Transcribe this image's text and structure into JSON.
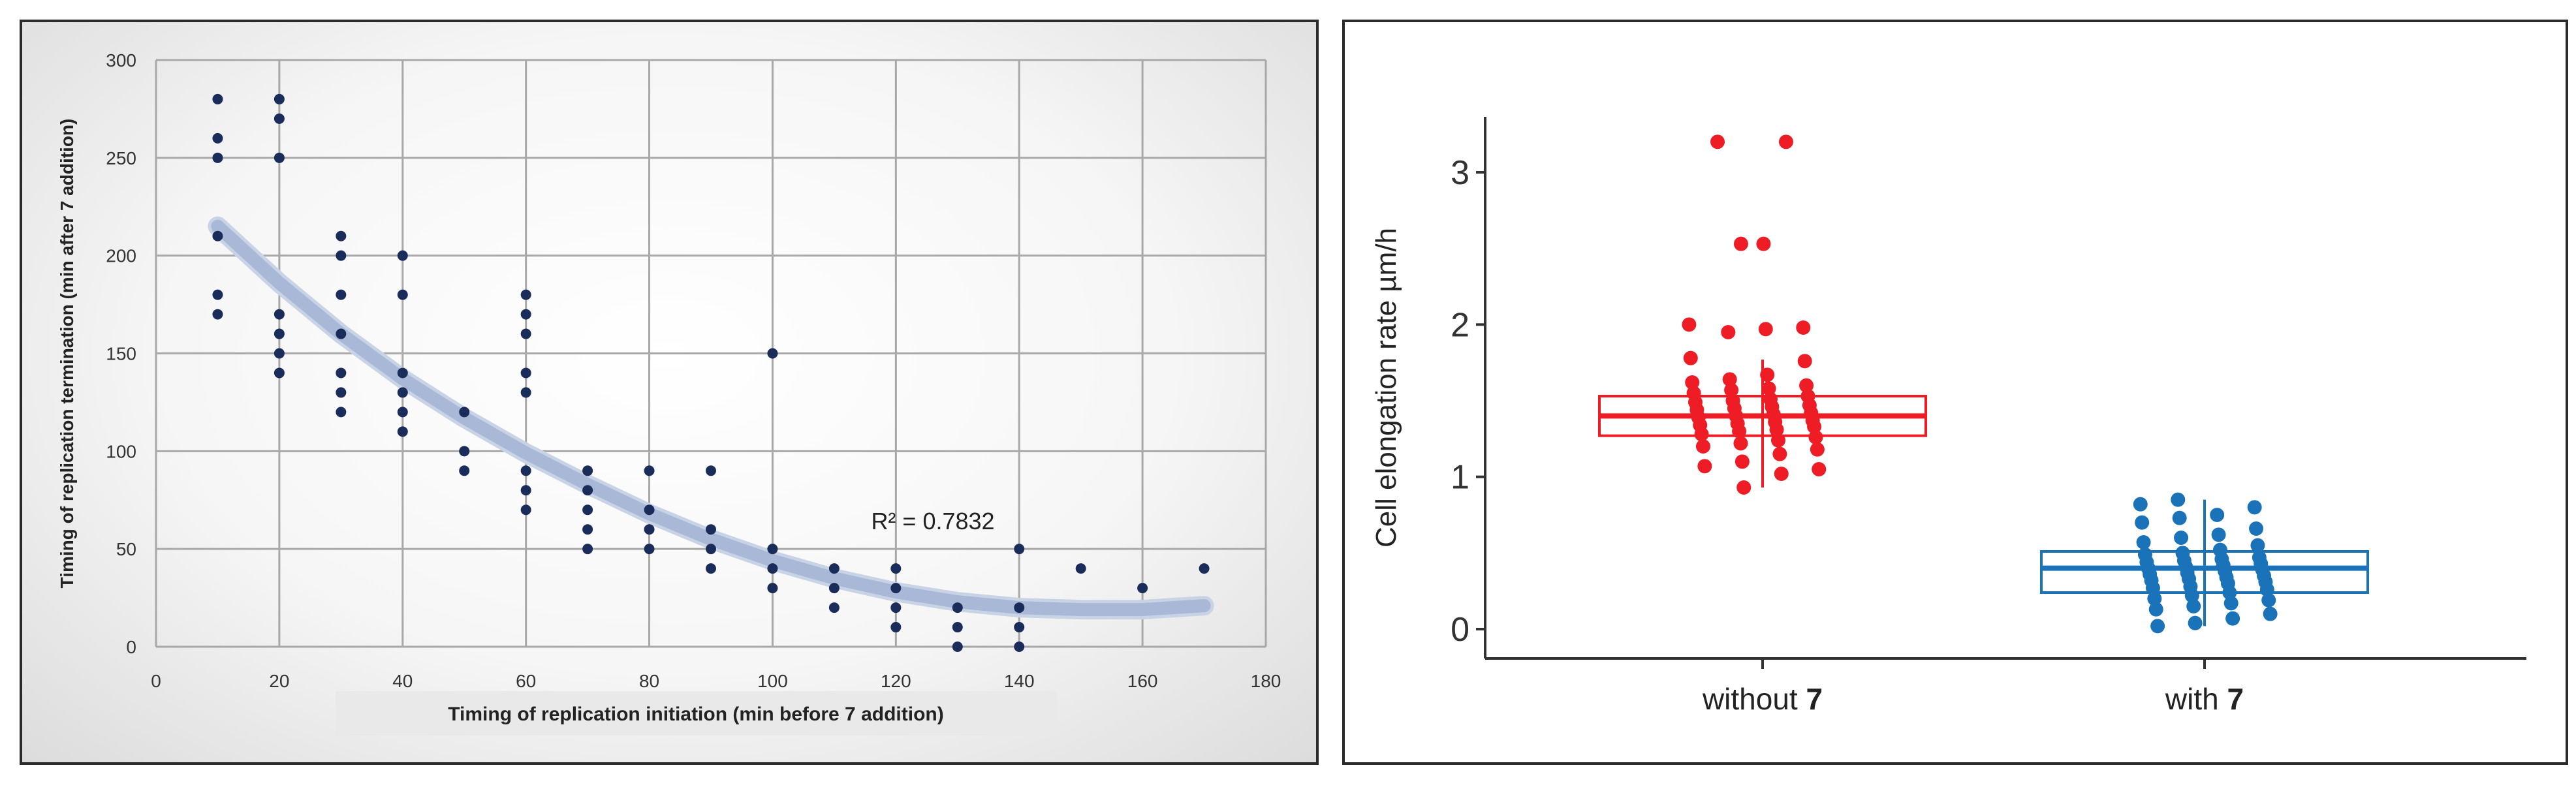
{
  "chart_data": [
    {
      "type": "scatter",
      "title": "",
      "xlabel": "Timing of replication initiation (min before 7 addition)",
      "ylabel": "Timing of replication termination (min after 7 addition)",
      "xlim": [
        0,
        180
      ],
      "ylim": [
        0,
        300
      ],
      "x_ticks": [
        0,
        20,
        40,
        60,
        80,
        100,
        120,
        140,
        160,
        180
      ],
      "y_ticks": [
        0,
        50,
        100,
        150,
        200,
        250,
        300
      ],
      "grid": true,
      "annotation": "R² = 0.7832",
      "points": [
        [
          10,
          280
        ],
        [
          10,
          260
        ],
        [
          10,
          250
        ],
        [
          10,
          210
        ],
        [
          10,
          180
        ],
        [
          10,
          170
        ],
        [
          20,
          280
        ],
        [
          20,
          270
        ],
        [
          20,
          250
        ],
        [
          20,
          170
        ],
        [
          20,
          160
        ],
        [
          20,
          150
        ],
        [
          20,
          140
        ],
        [
          30,
          210
        ],
        [
          30,
          200
        ],
        [
          30,
          180
        ],
        [
          30,
          160
        ],
        [
          30,
          140
        ],
        [
          30,
          130
        ],
        [
          30,
          120
        ],
        [
          40,
          200
        ],
        [
          40,
          180
        ],
        [
          40,
          140
        ],
        [
          40,
          130
        ],
        [
          40,
          120
        ],
        [
          40,
          110
        ],
        [
          50,
          120
        ],
        [
          50,
          100
        ],
        [
          50,
          90
        ],
        [
          60,
          180
        ],
        [
          60,
          170
        ],
        [
          60,
          160
        ],
        [
          60,
          140
        ],
        [
          60,
          130
        ],
        [
          60,
          90
        ],
        [
          60,
          80
        ],
        [
          60,
          70
        ],
        [
          70,
          90
        ],
        [
          70,
          80
        ],
        [
          70,
          70
        ],
        [
          70,
          60
        ],
        [
          70,
          50
        ],
        [
          80,
          90
        ],
        [
          80,
          70
        ],
        [
          80,
          60
        ],
        [
          80,
          50
        ],
        [
          90,
          90
        ],
        [
          90,
          60
        ],
        [
          90,
          50
        ],
        [
          90,
          40
        ],
        [
          100,
          150
        ],
        [
          100,
          50
        ],
        [
          100,
          40
        ],
        [
          100,
          30
        ],
        [
          110,
          40
        ],
        [
          110,
          30
        ],
        [
          110,
          20
        ],
        [
          120,
          40
        ],
        [
          120,
          30
        ],
        [
          120,
          20
        ],
        [
          120,
          10
        ],
        [
          130,
          20
        ],
        [
          130,
          10
        ],
        [
          130,
          0
        ],
        [
          140,
          50
        ],
        [
          140,
          20
        ],
        [
          140,
          10
        ],
        [
          140,
          0
        ],
        [
          150,
          40
        ],
        [
          160,
          30
        ],
        [
          170,
          40
        ]
      ],
      "trendline": [
        [
          10,
          215
        ],
        [
          20,
          186
        ],
        [
          30,
          160
        ],
        [
          40,
          137
        ],
        [
          50,
          117
        ],
        [
          60,
          99
        ],
        [
          70,
          83
        ],
        [
          80,
          68
        ],
        [
          90,
          55
        ],
        [
          100,
          44
        ],
        [
          110,
          35
        ],
        [
          120,
          28
        ],
        [
          130,
          23
        ],
        [
          140,
          20
        ],
        [
          150,
          19
        ],
        [
          160,
          19
        ],
        [
          170,
          21
        ]
      ],
      "colors": {
        "points": "#1a2d5a",
        "trendline": "#a9b8d6",
        "grid": "#a8a8a8"
      }
    },
    {
      "type": "box",
      "title": "",
      "xlabel": "",
      "ylabel": "Cell elongation rate µm/h",
      "ylim": [
        0,
        3.3
      ],
      "y_ticks": [
        0,
        1,
        2,
        3
      ],
      "grid": false,
      "categories": [
        {
          "prefix": "without ",
          "bold": "7"
        },
        {
          "prefix": "with ",
          "bold": "7"
        }
      ],
      "series": [
        {
          "color": "#ee1c24",
          "box": {
            "min": 0.93,
            "q1": 1.27,
            "median": 1.4,
            "q3": 1.53,
            "max": 1.77
          },
          "points": [
            3.2,
            3.2,
            2.53,
            2.53,
            2.0,
            1.98,
            1.97,
            1.95,
            1.78,
            1.76,
            1.67,
            1.64,
            1.62,
            1.6,
            1.58,
            1.57,
            1.55,
            1.53,
            1.51,
            1.5,
            1.49,
            1.47,
            1.46,
            1.45,
            1.44,
            1.42,
            1.41,
            1.4,
            1.39,
            1.37,
            1.36,
            1.35,
            1.34,
            1.33,
            1.31,
            1.3,
            1.28,
            1.26,
            1.24,
            1.22,
            1.2,
            1.18,
            1.15,
            1.1,
            1.07,
            1.05,
            1.02,
            0.93
          ]
        },
        {
          "color": "#1a72b8",
          "box": {
            "min": 0.02,
            "q1": 0.24,
            "median": 0.4,
            "q3": 0.51,
            "max": 0.85
          },
          "points": [
            0.85,
            0.82,
            0.8,
            0.75,
            0.73,
            0.7,
            0.66,
            0.62,
            0.6,
            0.57,
            0.55,
            0.52,
            0.5,
            0.49,
            0.47,
            0.46,
            0.45,
            0.44,
            0.43,
            0.42,
            0.41,
            0.4,
            0.39,
            0.38,
            0.37,
            0.36,
            0.35,
            0.34,
            0.33,
            0.32,
            0.31,
            0.3,
            0.28,
            0.27,
            0.26,
            0.24,
            0.22,
            0.2,
            0.19,
            0.17,
            0.15,
            0.13,
            0.1,
            0.07,
            0.04,
            0.02
          ]
        }
      ]
    }
  ]
}
